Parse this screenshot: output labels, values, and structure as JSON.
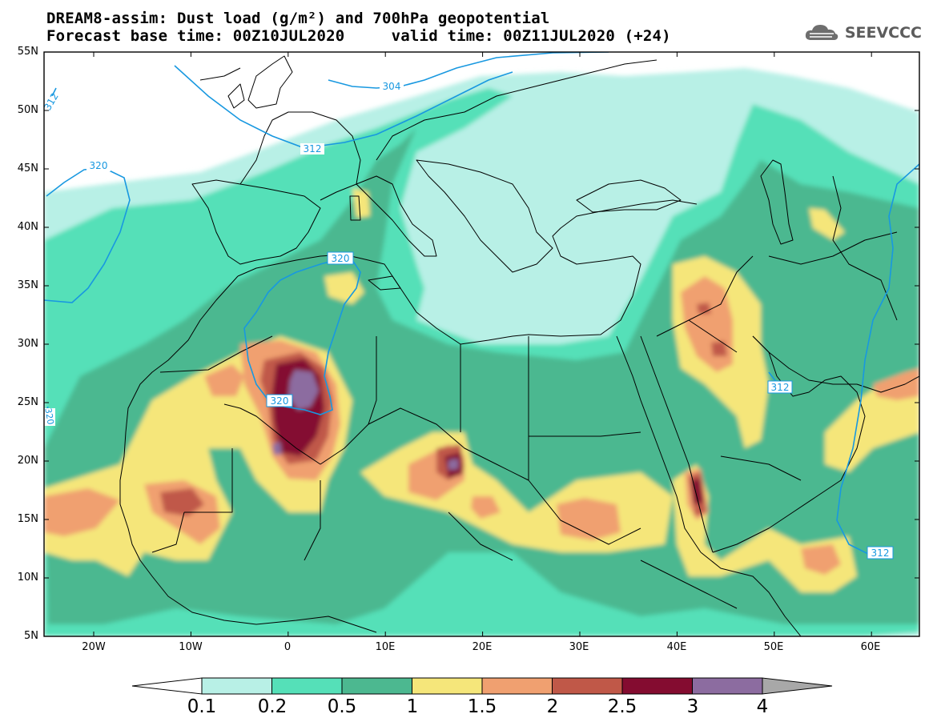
{
  "header": {
    "title_line1": "DREAM8-assim: Dust load (g/m²) and 700hPa geopotential",
    "title_line2": "Forecast base time: 00Z10JUL2020     valid time: 00Z11JUL2020 (+24)"
  },
  "logo": {
    "text": "SEEVCCC",
    "icon": "cloud-icon"
  },
  "map": {
    "lat_labels": [
      "55N",
      "50N",
      "45N",
      "40N",
      "35N",
      "30N",
      "25N",
      "20N",
      "15N",
      "10N",
      "5N"
    ],
    "lon_labels": [
      "20W",
      "10W",
      "0",
      "10E",
      "20E",
      "30E",
      "40E",
      "50E",
      "60E"
    ],
    "contour_labels": [
      {
        "text": "304"
      },
      {
        "text": "312"
      },
      {
        "text": "312"
      },
      {
        "text": "320"
      },
      {
        "text": "320"
      },
      {
        "text": "320"
      },
      {
        "text": "312"
      },
      {
        "text": "312"
      },
      {
        "text": "320"
      }
    ]
  },
  "colorbar": {
    "labels": [
      "0.1",
      "0.2",
      "0.5",
      "1",
      "1.5",
      "2",
      "2.5",
      "3",
      "4"
    ],
    "colors": [
      "#b8f0e6",
      "#55e0b8",
      "#4cb890",
      "#f5e67a",
      "#f0a070",
      "#c05848",
      "#840c30",
      "#8c6ca0"
    ],
    "under_color": "#ffffff",
    "over_color": "#a8a8a8"
  }
}
